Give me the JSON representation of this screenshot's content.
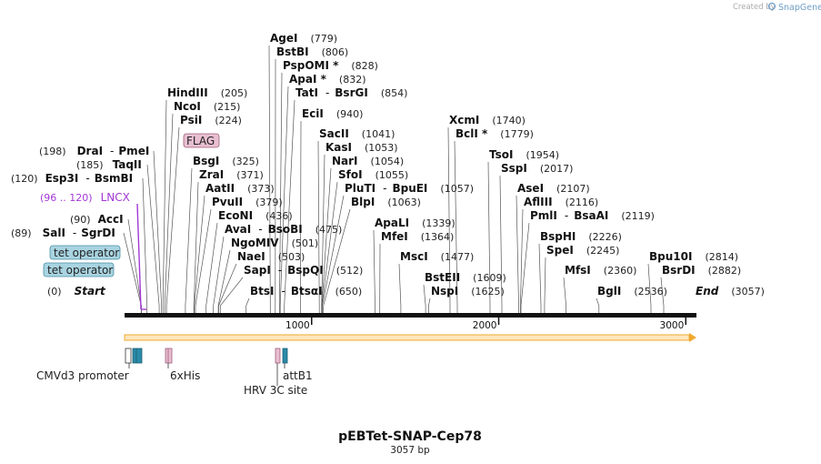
{
  "header": {
    "created_by": "Created by",
    "brand": "SnapGene"
  },
  "map": {
    "title": "pEBTet-SNAP-Cep78",
    "length_label": "3057 bp",
    "total_bp": 3057
  },
  "ruler": {
    "ticks": [
      1000,
      2000,
      3000
    ]
  },
  "colors": {
    "backbone": "#111111",
    "orf": "#f0a830",
    "orf_fill": "#fde7bd",
    "lncx": "#a338d6",
    "flag_fill": "#e8bfd0",
    "tet_fill": "#a8d4e1",
    "his": "#a05c7a",
    "attb": "#2a8aa8",
    "promoter": "#ffffff"
  },
  "sites": [
    {
      "name": "Start",
      "pos": "(0)",
      "bp": 0,
      "style": "ends",
      "side": "right"
    },
    {
      "name": "SalI",
      "sep": "-",
      "name2": "SgrDI",
      "pos": "(89)",
      "bp": 89,
      "side": "right"
    },
    {
      "name": "AccI",
      "pos": "(90)",
      "bp": 90,
      "side": "right"
    },
    {
      "name": "Esp3I",
      "sep": "-",
      "name2": "BsmBI",
      "pos": "(120)",
      "bp": 120,
      "side": "right"
    },
    {
      "name": "TaqII",
      "pos": "(185)",
      "bp": 185,
      "side": "right"
    },
    {
      "name": "DraI",
      "sep": "-",
      "name2": "PmeI",
      "pos": "(198)",
      "bp": 198,
      "side": "right"
    },
    {
      "name": "HindIII",
      "pos": "(205)",
      "bp": 205,
      "side": "left"
    },
    {
      "name": "NcoI",
      "pos": "(215)",
      "bp": 215,
      "side": "left"
    },
    {
      "name": "PsiI",
      "pos": "(224)",
      "bp": 224,
      "side": "left"
    },
    {
      "name": "BsgI",
      "pos": "(325)",
      "bp": 325,
      "side": "left"
    },
    {
      "name": "ZraI",
      "pos": "(371)",
      "bp": 371,
      "side": "left"
    },
    {
      "name": "AatII",
      "pos": "(373)",
      "bp": 373,
      "side": "left"
    },
    {
      "name": "PvuII",
      "pos": "(379)",
      "bp": 379,
      "side": "left"
    },
    {
      "name": "EcoNI",
      "pos": "(436)",
      "bp": 436,
      "side": "left"
    },
    {
      "name": "AvaI",
      "sep": "-",
      "name2": "BsoBI",
      "pos": "(475)",
      "bp": 475,
      "side": "left"
    },
    {
      "name": "NgoMIV",
      "pos": "(501)",
      "bp": 501,
      "side": "left"
    },
    {
      "name": "NaeI",
      "pos": "(503)",
      "bp": 503,
      "side": "left"
    },
    {
      "name": "SapI",
      "sep": "-",
      "name2": "BspQI",
      "pos": "(512)",
      "bp": 512,
      "side": "left"
    },
    {
      "name": "BtsI",
      "sep": "-",
      "name2": "BtsαI",
      "pos": "(650)",
      "bp": 650,
      "side": "left"
    },
    {
      "name": "AgeI",
      "pos": "(779)",
      "bp": 779,
      "side": "left"
    },
    {
      "name": "BstBI",
      "pos": "(806)",
      "bp": 806,
      "side": "left"
    },
    {
      "name": "PspOMI *",
      "pos": "(828)",
      "bp": 828,
      "side": "left"
    },
    {
      "name": "ApaI *",
      "pos": "(832)",
      "bp": 832,
      "side": "left"
    },
    {
      "name": "TatI",
      "sep": "-",
      "name2": "BsrGI",
      "pos": "(854)",
      "bp": 854,
      "side": "left"
    },
    {
      "name": "EciI",
      "pos": "(940)",
      "bp": 940,
      "side": "left"
    },
    {
      "name": "SacII",
      "pos": "(1041)",
      "bp": 1041,
      "side": "left"
    },
    {
      "name": "KasI",
      "pos": "(1053)",
      "bp": 1053,
      "side": "left"
    },
    {
      "name": "NarI",
      "pos": "(1054)",
      "bp": 1054,
      "side": "left"
    },
    {
      "name": "SfoI",
      "pos": "(1055)",
      "bp": 1055,
      "side": "left"
    },
    {
      "name": "PluTI",
      "sep": "-",
      "name2": "BpuEI",
      "pos": "(1057)",
      "bp": 1057,
      "side": "left"
    },
    {
      "name": "BlpI",
      "pos": "(1063)",
      "bp": 1063,
      "side": "left"
    },
    {
      "name": "ApaLI",
      "pos": "(1339)",
      "bp": 1339,
      "side": "left"
    },
    {
      "name": "MfeI",
      "pos": "(1364)",
      "bp": 1364,
      "side": "left"
    },
    {
      "name": "MscI",
      "pos": "(1477)",
      "bp": 1477,
      "side": "left"
    },
    {
      "name": "BstEII",
      "pos": "(1609)",
      "bp": 1609,
      "side": "left"
    },
    {
      "name": "NspI",
      "pos": "(1625)",
      "bp": 1625,
      "side": "left"
    },
    {
      "name": "XcmI",
      "pos": "(1740)",
      "bp": 1740,
      "side": "left"
    },
    {
      "name": "BclI *",
      "pos": "(1779)",
      "bp": 1779,
      "side": "left"
    },
    {
      "name": "TsoI",
      "pos": "(1954)",
      "bp": 1954,
      "side": "left"
    },
    {
      "name": "SspI",
      "pos": "(2017)",
      "bp": 2017,
      "side": "left"
    },
    {
      "name": "AseI",
      "pos": "(2107)",
      "bp": 2107,
      "side": "left"
    },
    {
      "name": "AflIII",
      "pos": "(2116)",
      "bp": 2116,
      "side": "left"
    },
    {
      "name": "PmlI",
      "sep": "-",
      "name2": "BsaAI",
      "pos": "(2119)",
      "bp": 2119,
      "side": "left"
    },
    {
      "name": "BspHI",
      "pos": "(2226)",
      "bp": 2226,
      "side": "left"
    },
    {
      "name": "SpeI",
      "pos": "(2245)",
      "bp": 2245,
      "side": "left"
    },
    {
      "name": "MfsI",
      "pos": "(2360)",
      "bp": 2360,
      "side": "left",
      "display": "MfsI"
    },
    {
      "name": "BglI",
      "pos": "(2536)",
      "bp": 2536,
      "side": "left"
    },
    {
      "name": "Bpu10I",
      "pos": "(2814)",
      "bp": 2814,
      "side": "left"
    },
    {
      "name": "BsrDI",
      "pos": "(2882)",
      "bp": 2882,
      "side": "left"
    },
    {
      "name": "End",
      "pos": "(3057)",
      "bp": 3057,
      "style": "ends",
      "side": "left"
    }
  ],
  "features_above": [
    {
      "label": "LNCX",
      "range": "(96 .. 120)",
      "start": 96,
      "end": 120
    },
    {
      "label": "FLAG",
      "start": 205,
      "end": 229
    },
    {
      "label": "tet operator",
      "start": 60,
      "end": 78
    },
    {
      "label": "tet operator",
      "start": 40,
      "end": 58
    }
  ],
  "features_below": [
    {
      "label": "CMVd3 promoter",
      "start": 0,
      "end": 34
    },
    {
      "label": "6xHis",
      "start": 218,
      "end": 236
    },
    {
      "label": "HRV 3C site",
      "start": 805,
      "end": 829
    },
    {
      "label": "attB1",
      "start": 840,
      "end": 864
    }
  ]
}
